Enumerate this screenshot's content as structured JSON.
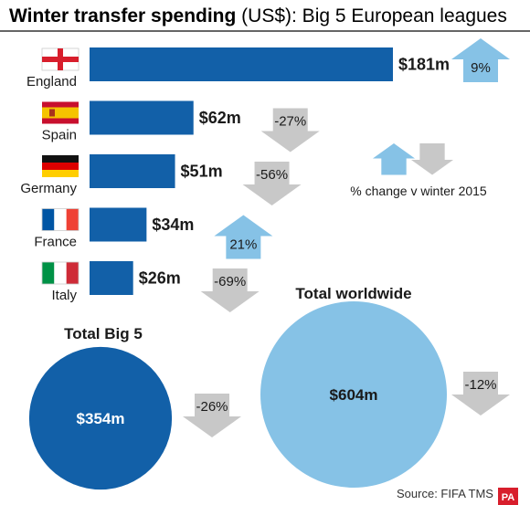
{
  "title": {
    "bold": "Winter transfer spending",
    "rest": " (US$): Big 5 European leagues"
  },
  "colors": {
    "bar": "#1260a8",
    "up_arrow": "#86c2e6",
    "down_arrow": "#c8c8c8",
    "big5_circle": "#1260a8",
    "world_circle": "#86c2e6"
  },
  "chart_data": [
    {
      "type": "bar",
      "orientation": "horizontal",
      "unit": "US$ millions",
      "categories": [
        "England",
        "Spain",
        "Germany",
        "France",
        "Italy"
      ],
      "flags": [
        "england-flag-icon",
        "spain-flag-icon",
        "germany-flag-icon",
        "france-flag-icon",
        "italy-flag-icon"
      ],
      "values": [
        181,
        62,
        51,
        34,
        26
      ],
      "value_labels": [
        "$181m",
        "$62m",
        "$51m",
        "$34m",
        "$26m"
      ],
      "change": [
        9,
        -27,
        -56,
        21,
        -69
      ],
      "change_labels": [
        "9%",
        "-27%",
        "-56%",
        "21%",
        "-69%"
      ],
      "legend": "% change v winter 2015"
    },
    {
      "type": "bubble",
      "items": [
        {
          "name": "Total Big 5",
          "value": 354,
          "value_label": "$354m",
          "change": -26,
          "change_label": "-26%"
        },
        {
          "name": "Total worldwide",
          "value": 604,
          "value_label": "$604m",
          "change": -12,
          "change_label": "-12%"
        }
      ]
    }
  ],
  "source": "Source: FIFA TMS",
  "logo_text": "PA"
}
